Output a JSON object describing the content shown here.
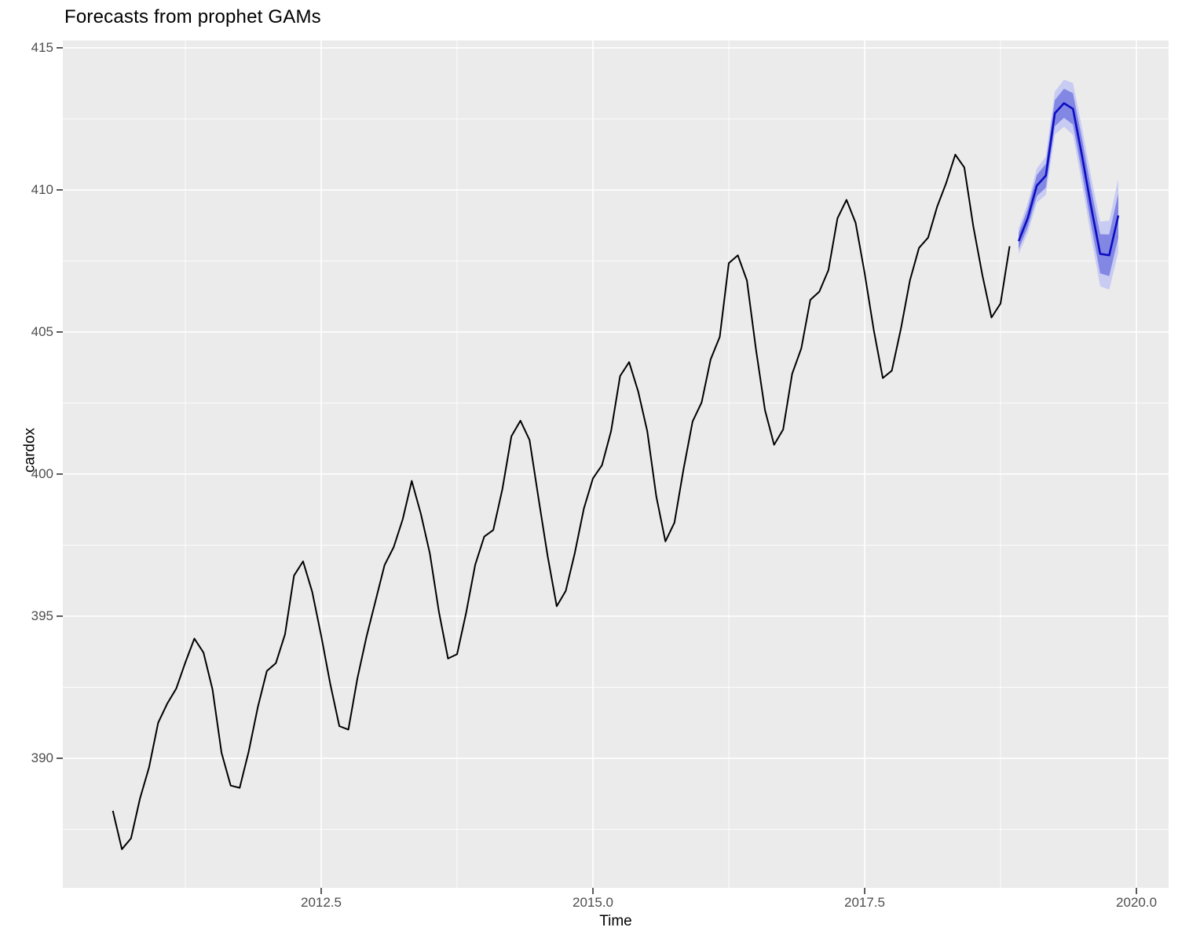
{
  "chart_data": {
    "type": "line",
    "title": "Forecasts from prophet GAMs",
    "xlabel": "Time",
    "ylabel": "cardox",
    "legend": "none",
    "grid": true,
    "xlim": [
      2010.123,
      2020.296
    ],
    "ylim": [
      385.44,
      415.26
    ],
    "x_ticks": {
      "values": [
        2012.5,
        2015.0,
        2017.5,
        2020.0
      ],
      "labels": [
        "2012.5",
        "2015.0",
        "2017.5",
        "2020.0"
      ]
    },
    "y_ticks": {
      "values": [
        390,
        395,
        400,
        405,
        410,
        415
      ],
      "labels": [
        "390",
        "395",
        "400",
        "405",
        "410",
        "415"
      ]
    },
    "x_minor": [
      2011.25,
      2013.75,
      2016.25,
      2018.75
    ],
    "y_minor": [
      387.5,
      392.5,
      397.5,
      402.5,
      407.5,
      412.5
    ],
    "colors": {
      "history_line": "#000000",
      "forecast_line": "#0D0DC2",
      "ribbon80": "#8287E4",
      "ribbon95": "#C8CBF2",
      "panel_bg": "#EBEBEB",
      "gridline": "#FFFFFF",
      "tick_mark": "#333333",
      "tick_label": "#4D4D4D"
    },
    "series": [
      {
        "name": "history",
        "start": 2010.58333,
        "step": 0.0833333,
        "values": [
          388.15,
          386.8,
          387.18,
          388.59,
          389.68,
          391.25,
          391.92,
          392.45,
          393.37,
          394.21,
          393.72,
          392.42,
          390.19,
          389.04,
          388.96,
          390.24,
          391.8,
          393.07,
          393.35,
          394.36,
          396.43,
          396.93,
          395.86,
          394.31,
          392.62,
          391.13,
          391.01,
          392.81,
          394.28,
          395.54,
          396.8,
          397.43,
          398.41,
          399.76,
          398.6,
          397.2,
          395.15,
          393.51,
          393.66,
          395.11,
          396.81,
          397.8,
          398.03,
          399.47,
          401.33,
          401.88,
          401.2,
          399.13,
          397.12,
          395.35,
          395.89,
          397.22,
          398.79,
          399.85,
          400.31,
          401.51,
          403.45,
          403.94,
          402.9,
          401.51,
          399.21,
          397.63,
          398.29,
          400.16,
          401.85,
          402.52,
          404.04,
          404.83,
          407.42,
          407.7,
          406.81,
          404.39,
          402.25,
          401.03,
          401.57,
          403.53,
          404.42,
          406.13,
          406.42,
          407.18,
          409.0,
          409.65,
          408.84,
          407.07,
          405.07,
          403.38,
          403.64,
          405.12,
          406.82,
          407.96,
          408.32,
          409.41,
          410.24,
          411.24,
          410.79,
          408.71,
          406.99,
          405.51,
          406.0,
          408.02
        ]
      },
      {
        "name": "forecast_mean",
        "start": 2018.91667,
        "step": 0.0833333,
        "values": [
          408.2,
          409.0,
          410.15,
          410.5,
          412.7,
          413.05,
          412.85,
          411.2,
          409.4,
          407.75,
          407.7,
          409.1
        ]
      }
    ],
    "intervals": [
      {
        "level": 95,
        "lower": [
          407.75,
          408.47,
          409.55,
          409.82,
          411.95,
          412.22,
          411.94,
          410.22,
          408.34,
          406.61,
          406.49,
          407.81
        ],
        "upper": [
          408.65,
          409.53,
          410.75,
          411.18,
          413.46,
          413.88,
          413.76,
          412.19,
          410.46,
          408.89,
          408.91,
          410.39
        ]
      },
      {
        "level": 80,
        "lower": [
          407.92,
          408.68,
          409.78,
          410.08,
          412.24,
          412.54,
          412.3,
          410.6,
          408.76,
          407.06,
          406.97,
          408.32
        ],
        "upper": [
          408.48,
          409.33,
          410.52,
          410.92,
          413.16,
          413.56,
          413.4,
          411.8,
          410.04,
          408.44,
          408.43,
          409.88
        ]
      }
    ]
  }
}
